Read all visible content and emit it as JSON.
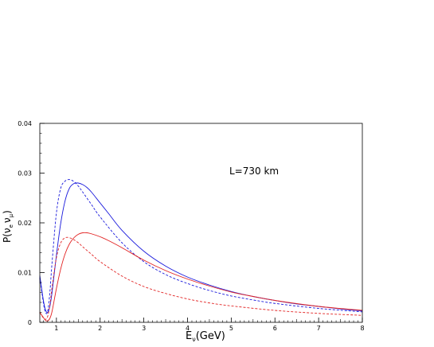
{
  "chart_data": {
    "type": "line",
    "title": "",
    "xlabel": "E",
    "xlabel_sub": "ν",
    "xlabel_unit": "(GeV)",
    "ylabel": "P(",
    "ylabel_nu1": "ν",
    "ylabel_sub1": "e",
    "ylabel_nu2": "ν",
    "ylabel_sub2": "μ",
    "ylabel_close": ")",
    "annotation": "L=730 km",
    "xlim": [
      0.62,
      8
    ],
    "ylim": [
      0,
      0.04
    ],
    "x_ticks": [
      1,
      2,
      3,
      4,
      5,
      6,
      7,
      8
    ],
    "x_tick_labels": [
      "1",
      "2",
      "3",
      "4",
      "5",
      "6",
      "7",
      "8"
    ],
    "y_ticks": [
      0,
      0.01,
      0.02,
      0.03,
      0.04
    ],
    "y_tick_labels": [
      "0",
      "0.01",
      "0.02",
      "0.03",
      "0.04"
    ],
    "series": [
      {
        "color": "#1a1adc",
        "dash": "solid",
        "x": [
          0.62,
          0.7,
          0.75,
          0.8,
          0.85,
          0.9,
          1.0,
          1.1,
          1.2,
          1.3,
          1.4,
          1.5,
          1.6,
          1.7,
          1.8,
          2.0,
          2.2,
          2.5,
          3.0,
          3.5,
          4.0,
          4.5,
          5.0,
          5.5,
          6.0,
          6.5,
          7.0,
          7.5,
          8.0
        ],
        "y": [
          0.0094,
          0.0045,
          0.0025,
          0.002,
          0.0032,
          0.006,
          0.0135,
          0.02,
          0.0245,
          0.027,
          0.0279,
          0.028,
          0.0277,
          0.0271,
          0.0262,
          0.024,
          0.0218,
          0.0185,
          0.0143,
          0.0113,
          0.0091,
          0.0075,
          0.0062,
          0.0052,
          0.0044,
          0.0037,
          0.0032,
          0.0027,
          0.0023
        ]
      },
      {
        "color": "#1a1adc",
        "dash": "dashed",
        "x": [
          0.62,
          0.7,
          0.75,
          0.8,
          0.85,
          0.9,
          1.0,
          1.1,
          1.2,
          1.3,
          1.4,
          1.5,
          1.6,
          1.8,
          2.0,
          2.5,
          3.0,
          3.5,
          4.0,
          4.5,
          5.0,
          5.5,
          6.0,
          7.0,
          8.0
        ],
        "y": [
          0.009,
          0.004,
          0.002,
          0.0022,
          0.006,
          0.012,
          0.022,
          0.027,
          0.0284,
          0.0287,
          0.0283,
          0.0274,
          0.0262,
          0.0237,
          0.0212,
          0.016,
          0.0122,
          0.0096,
          0.0078,
          0.0064,
          0.0053,
          0.0045,
          0.0038,
          0.0028,
          0.0021
        ]
      },
      {
        "color": "#e22222",
        "dash": "solid",
        "x": [
          0.62,
          0.7,
          0.75,
          0.8,
          0.85,
          0.9,
          1.0,
          1.1,
          1.2,
          1.3,
          1.4,
          1.5,
          1.6,
          1.7,
          1.8,
          2.0,
          2.2,
          2.5,
          3.0,
          3.5,
          4.0,
          4.5,
          5.0,
          5.5,
          6.0,
          7.0,
          8.0
        ],
        "y": [
          0.002,
          0.001,
          0.0004,
          0.0003,
          0.0008,
          0.0022,
          0.0068,
          0.0108,
          0.0138,
          0.0158,
          0.017,
          0.0177,
          0.018,
          0.018,
          0.0178,
          0.0172,
          0.0164,
          0.015,
          0.0125,
          0.0104,
          0.0087,
          0.0073,
          0.0061,
          0.0052,
          0.0044,
          0.0032,
          0.0024
        ]
      },
      {
        "color": "#e22222",
        "dash": "dashed",
        "x": [
          0.62,
          0.7,
          0.75,
          0.8,
          0.85,
          0.9,
          1.0,
          1.1,
          1.2,
          1.3,
          1.4,
          1.5,
          1.6,
          1.8,
          2.0,
          2.5,
          3.0,
          3.5,
          4.0,
          4.5,
          5.0,
          6.0,
          7.0,
          8.0
        ],
        "y": [
          0.002,
          0.0009,
          0.0006,
          0.0012,
          0.0035,
          0.007,
          0.013,
          0.016,
          0.017,
          0.017,
          0.0166,
          0.016,
          0.0152,
          0.0137,
          0.0122,
          0.0093,
          0.0072,
          0.0058,
          0.0047,
          0.0039,
          0.0033,
          0.0024,
          0.0018,
          0.0014
        ]
      }
    ]
  }
}
